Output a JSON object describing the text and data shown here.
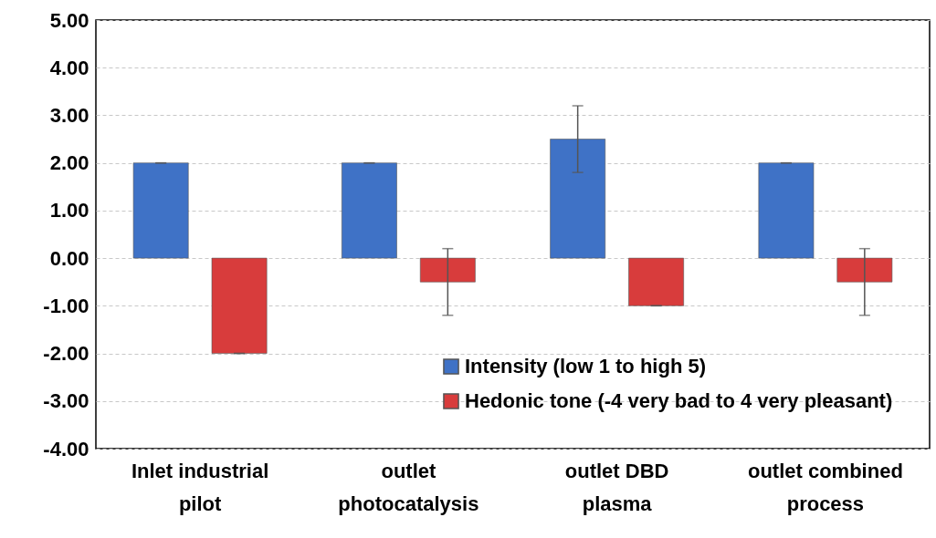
{
  "chart_data": {
    "type": "bar",
    "categories": [
      "Inlet industrial pilot",
      "outlet photocatalysis",
      "outlet DBD plasma",
      "outlet combined process"
    ],
    "series": [
      {
        "name": "Intensity (low 1 to high 5)",
        "color": "#3f72c6",
        "values": [
          2,
          2,
          2.5,
          2
        ],
        "errors": [
          0,
          0,
          0.7,
          0
        ]
      },
      {
        "name": "Hedonic tone (-4 very bad to 4 very pleasant)",
        "color": "#d83c3c",
        "values": [
          -2,
          -0.5,
          -1,
          -0.5
        ],
        "errors": [
          0,
          0.7,
          0,
          0.7
        ]
      }
    ],
    "ylim": [
      -4,
      5
    ],
    "yticks": [
      {
        "value": -4,
        "label": "-4.00"
      },
      {
        "value": -3,
        "label": "-3.00"
      },
      {
        "value": -2,
        "label": "-2.00"
      },
      {
        "value": -1,
        "label": "-1.00"
      },
      {
        "value": 0,
        "label": "0.00"
      },
      {
        "value": 1,
        "label": "1.00"
      },
      {
        "value": 2,
        "label": "2.00"
      },
      {
        "value": 3,
        "label": "3.00"
      },
      {
        "value": 4,
        "label": "4.00"
      },
      {
        "value": 5,
        "label": "5.00"
      }
    ],
    "grid": "y",
    "legend": "bottom right"
  }
}
